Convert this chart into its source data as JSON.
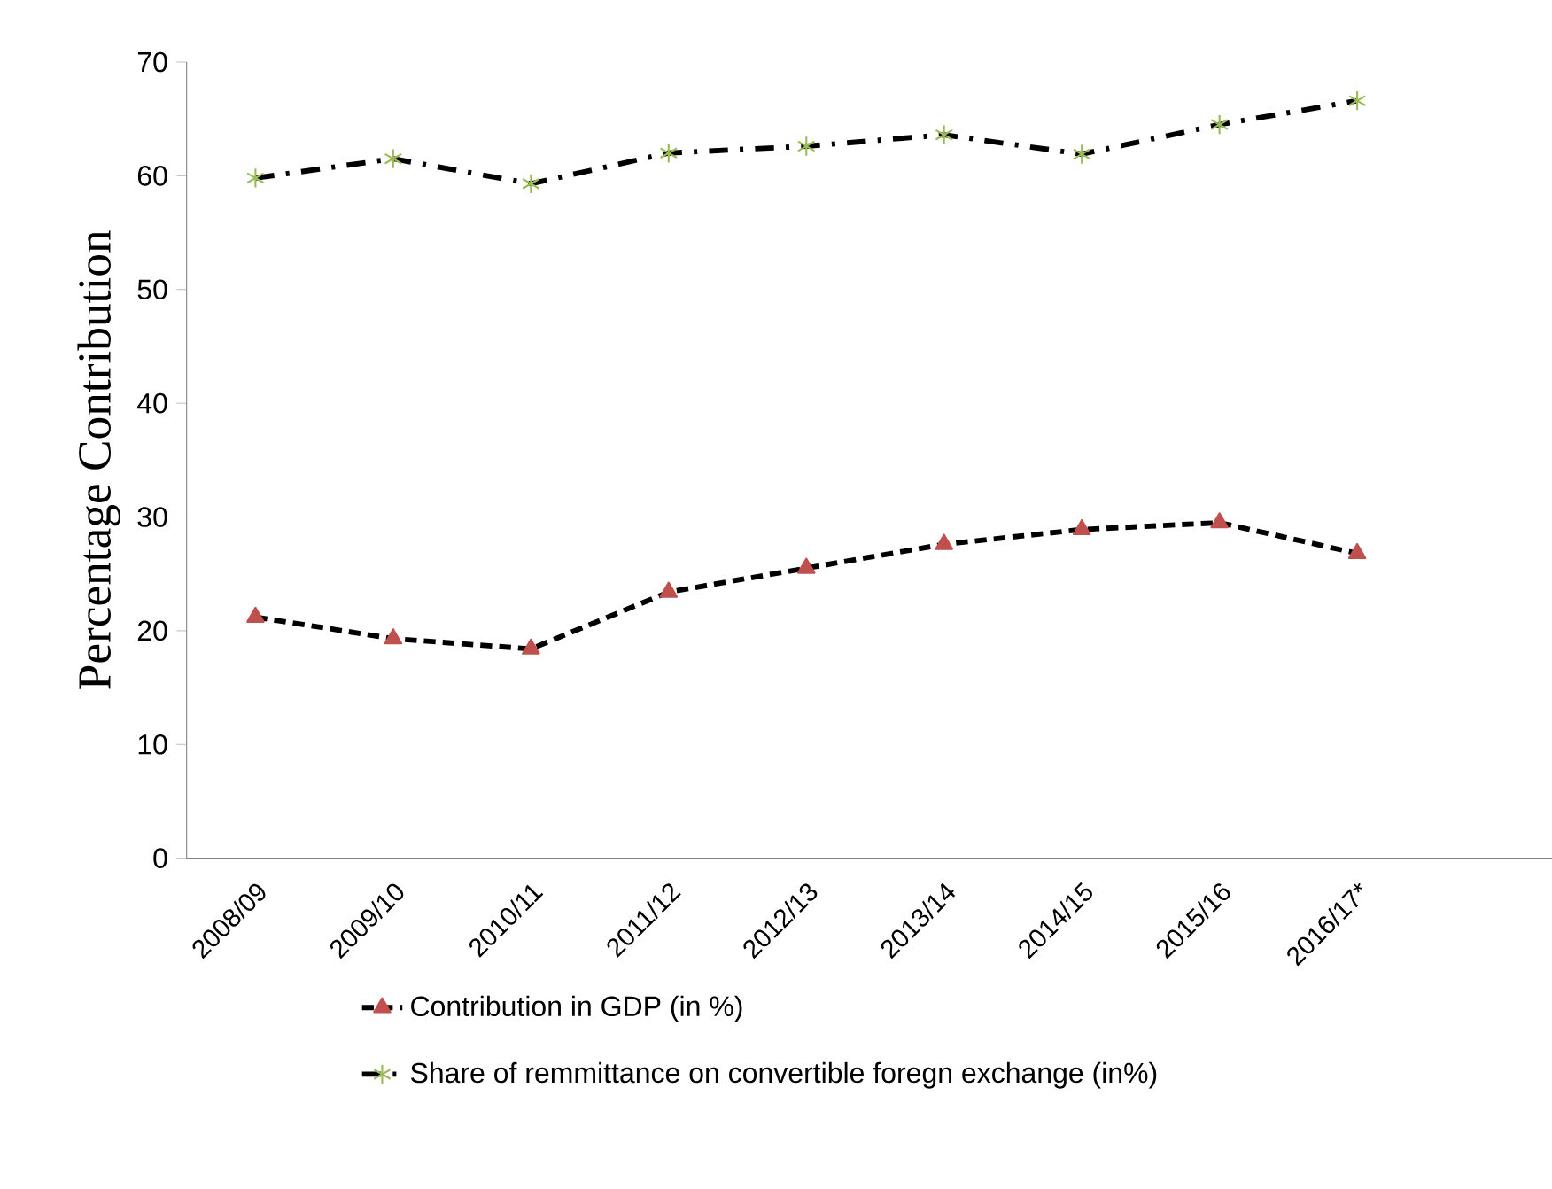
{
  "chart_data": {
    "type": "line",
    "ylabel": "Percentage Contribution",
    "categories": [
      "2008/09",
      "2009/10",
      "2010/11",
      "2011/12",
      "2012/13",
      "2013/14",
      "2014/15",
      "2015/16",
      "2016/17*"
    ],
    "series": [
      {
        "name": "Contribution in GDP (in %)",
        "color": "#c0504d",
        "marker": "triangle",
        "line_style": "dashed",
        "values": [
          21.2,
          19.3,
          18.4,
          23.4,
          25.5,
          27.6,
          28.9,
          29.5,
          26.8
        ]
      },
      {
        "name": "Share of remmittance on convertible foregn exchange (in%)",
        "color": "#9bbb59",
        "marker": "cross",
        "line_style": "dashdot",
        "values": [
          59.8,
          61.5,
          59.3,
          62.0,
          62.6,
          63.6,
          61.9,
          64.5,
          66.6
        ]
      }
    ],
    "ylim": [
      0,
      70
    ],
    "yticks": [
      0,
      10,
      20,
      30,
      40,
      50,
      60,
      70
    ],
    "grid": false,
    "legend": "bottom"
  }
}
